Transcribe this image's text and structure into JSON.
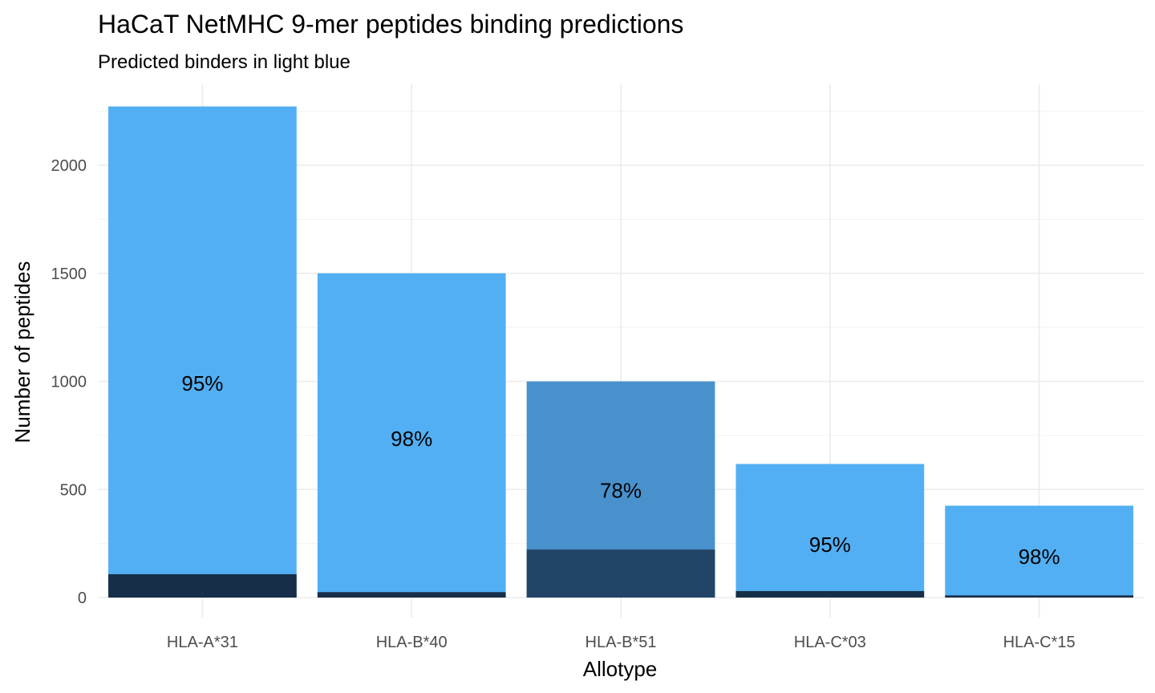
{
  "chart_data": {
    "type": "bar",
    "title": "HaCaT NetMHC 9-mer peptides binding predictions",
    "subtitle": "Predicted binders in light blue",
    "xlabel": "Allotype",
    "ylabel": "Number of peptides",
    "categories": [
      "HLA-A*31",
      "HLA-B*40",
      "HLA-B*51",
      "HLA-C*03",
      "HLA-C*15"
    ],
    "totals": [
      2272,
      1500,
      1000,
      618,
      425
    ],
    "non_binders": [
      108,
      25,
      222,
      30,
      10
    ],
    "labels": [
      "95%",
      "98%",
      "78%",
      "95%",
      "98%"
    ],
    "label_values": [
      990,
      735,
      495,
      245,
      190
    ],
    "bar_colors": [
      "#53aff3",
      "#53aff3",
      "#4891cc",
      "#53aff3",
      "#53aff3"
    ],
    "bottom_colors": [
      "#162e47",
      "#192f48",
      "#224466",
      "#162e47",
      "#192f48"
    ],
    "y_ticks": [
      0,
      500,
      1000,
      1500,
      2000
    ],
    "ylim": [
      -95,
      2390
    ],
    "grid": true
  }
}
